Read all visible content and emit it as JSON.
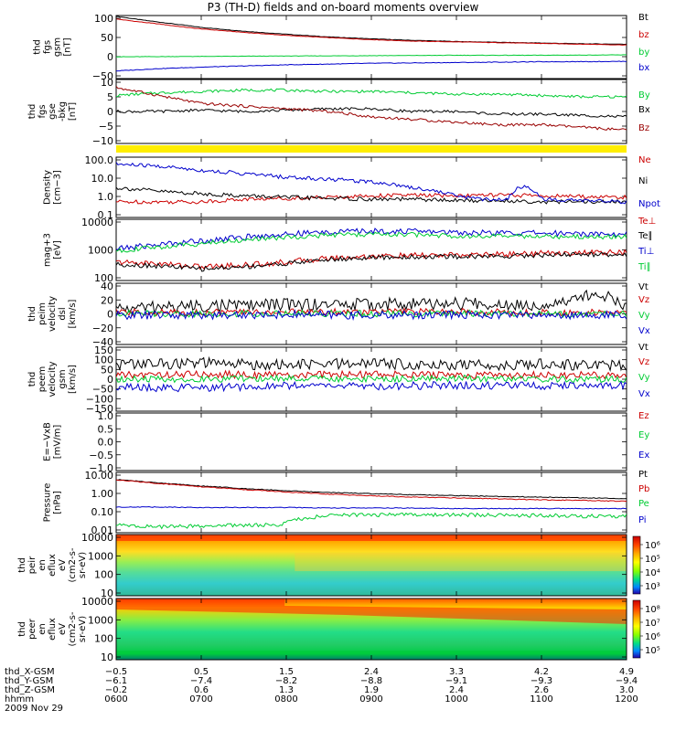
{
  "title": "P3 (TH-D) fields and on-board moments overview",
  "colors": {
    "black": "#000000",
    "red": "#cc0000",
    "green": "#00cc33",
    "blue": "#0000cc",
    "darkred": "#990000",
    "yellow": "#ffee00"
  },
  "chart_data": [
    {
      "type": "line",
      "panel": "fgs_gsm",
      "ylabel": [
        "thd",
        "fgs",
        "gsm",
        "[nT]"
      ],
      "yticks": [
        "100",
        "50",
        "0",
        "−50"
      ],
      "ylim": [
        -60,
        105
      ],
      "series": [
        {
          "name": "Bt",
          "color": "#000000",
          "x": [
            6.0,
            6.25,
            6.5,
            6.75,
            7.0,
            7.5,
            8.0,
            8.5,
            9.0,
            9.5,
            10.0,
            10.5,
            11.0,
            11.5,
            12.0
          ],
          "y": [
            103,
            95,
            88,
            81,
            74,
            64,
            56,
            49,
            44,
            40,
            37,
            35,
            33,
            31,
            30
          ]
        },
        {
          "name": "bz",
          "color": "#cc0000",
          "x": [
            6.0,
            6.25,
            6.5,
            6.75,
            7.0,
            7.5,
            8.0,
            8.5,
            9.0,
            9.5,
            10.0,
            10.5,
            11.0,
            11.5,
            12.0
          ],
          "y": [
            96,
            89,
            83,
            76,
            70,
            61,
            53,
            47,
            42,
            38,
            36,
            34,
            32,
            30,
            28
          ]
        },
        {
          "name": "by",
          "color": "#00cc33",
          "x": [
            6.0,
            7.0,
            8.0,
            9.0,
            10.0,
            11.0,
            12.0
          ],
          "y": [
            -3,
            -2,
            -1,
            0,
            1,
            1,
            2
          ]
        },
        {
          "name": "bx",
          "color": "#0000cc",
          "x": [
            6.0,
            6.5,
            7.0,
            7.5,
            8.0,
            8.5,
            9.0,
            10.0,
            11.0,
            12.0
          ],
          "y": [
            -40,
            -34,
            -30,
            -27,
            -24,
            -22,
            -20,
            -18,
            -16,
            -15
          ]
        }
      ]
    },
    {
      "type": "line",
      "panel": "fgs_dsl",
      "ylabel": [
        "thd",
        "fgs",
        "gse",
        "-bkg",
        "[nT]"
      ],
      "yticks": [
        "10",
        "5",
        "0",
        "−5",
        "−10"
      ],
      "ylim": [
        -13,
        11
      ],
      "series": [
        {
          "name": "By",
          "color": "#00cc33",
          "x": [
            6.0,
            6.5,
            7.0,
            7.5,
            8.0,
            8.5,
            9.0,
            9.5,
            10.0,
            10.5,
            11.0,
            11.5,
            12.0
          ],
          "y": [
            5,
            6,
            6.5,
            7,
            7,
            6.5,
            6.5,
            6,
            5.5,
            5.5,
            5,
            4.5,
            4.5
          ]
        },
        {
          "name": "Bx",
          "color": "#000000",
          "x": [
            6.0,
            6.5,
            7.0,
            7.5,
            8.0,
            8.5,
            9.0,
            9.5,
            10.0,
            10.5,
            11.0,
            11.5,
            12.0
          ],
          "y": [
            -1,
            -1,
            -0.5,
            -1,
            -0.5,
            0,
            0,
            -1,
            -1,
            -2,
            -2,
            -2.5,
            -3
          ]
        },
        {
          "name": "Bz",
          "color": "#990000",
          "x": [
            6.0,
            6.5,
            7.0,
            7.5,
            8.0,
            8.5,
            9.0,
            9.5,
            10.0,
            10.5,
            11.0,
            11.5,
            12.0
          ],
          "y": [
            8,
            5,
            2,
            1,
            0,
            -1,
            -3,
            -4,
            -5,
            -6,
            -6,
            -7,
            -8
          ]
        }
      ]
    },
    {
      "type": "line",
      "panel": "density",
      "yscale": "log",
      "ylabel": [
        "Density",
        "[cm−3]"
      ],
      "yticks": [
        "100.0",
        "10.0",
        "1.0",
        "0.1"
      ],
      "ylim": [
        0.1,
        100
      ],
      "series": [
        {
          "name": "Ne",
          "color": "#cc0000",
          "x": [
            6.0,
            6.5,
            7.0,
            7.5,
            8.0,
            8.5,
            9.0,
            9.5,
            10.0,
            10.5,
            11.0,
            11.5,
            12.0
          ],
          "y": [
            0.6,
            0.6,
            0.6,
            0.8,
            0.9,
            1.0,
            1.2,
            1.3,
            1.2,
            1.3,
            1.2,
            1.1,
            1.0
          ]
        },
        {
          "name": "Ni",
          "color": "#000000",
          "x": [
            6.0,
            6.5,
            7.0,
            7.5,
            8.0,
            8.5,
            9.0,
            9.5,
            10.0,
            10.5,
            11.0,
            11.5,
            12.0
          ],
          "y": [
            3.0,
            2.0,
            1.5,
            1.2,
            1.0,
            0.9,
            0.8,
            0.8,
            0.7,
            0.7,
            0.6,
            0.6,
            0.6
          ]
        },
        {
          "name": "Npot",
          "color": "#0000cc",
          "x": [
            6.0,
            6.5,
            7.0,
            7.5,
            8.0,
            8.5,
            9.0,
            9.5,
            10.0,
            10.3,
            10.6,
            10.8,
            11.0,
            11.5,
            12.0
          ],
          "y": [
            45,
            35,
            22,
            15,
            10,
            8,
            6,
            3,
            1.2,
            0.8,
            0.8,
            4,
            0.8,
            0.7,
            0.6
          ]
        }
      ]
    },
    {
      "type": "line",
      "panel": "temperature",
      "yscale": "log",
      "ylabel": [
        "mag+3",
        "[eV]"
      ],
      "yticks": [
        "10000",
        "1000",
        "100"
      ],
      "ylim": [
        30,
        10000
      ],
      "series": [
        {
          "name": "Te⊥",
          "color": "#cc0000",
          "x": [
            6.0,
            6.5,
            7.0,
            7.5,
            8.0,
            8.5,
            9.0,
            9.5,
            10.0,
            10.5,
            11.0,
            11.5,
            12.0
          ],
          "y": [
            170,
            150,
            110,
            130,
            170,
            250,
            300,
            320,
            330,
            360,
            400,
            420,
            430
          ]
        },
        {
          "name": "Te∥",
          "color": "#000000",
          "x": [
            6.0,
            6.5,
            7.0,
            7.5,
            8.0,
            8.5,
            9.0,
            9.5,
            10.0,
            10.5,
            11.0,
            11.5,
            12.0
          ],
          "y": [
            140,
            120,
            90,
            110,
            150,
            220,
            260,
            280,
            290,
            300,
            340,
            360,
            360
          ]
        },
        {
          "name": "Ti⊥",
          "color": "#0000cc",
          "x": [
            6.0,
            6.5,
            7.0,
            7.5,
            8.0,
            8.5,
            9.0,
            9.5,
            10.0,
            10.5,
            11.0,
            11.5,
            12.0
          ],
          "y": [
            600,
            900,
            1300,
            1800,
            2400,
            3000,
            3300,
            3200,
            2900,
            2700,
            2700,
            2600,
            2500
          ]
        },
        {
          "name": "Ti∥",
          "color": "#00cc33",
          "x": [
            6.0,
            6.5,
            7.0,
            7.5,
            8.0,
            8.5,
            9.0,
            9.5,
            10.0,
            10.5,
            11.0,
            11.5,
            12.0
          ],
          "y": [
            500,
            700,
            1000,
            1400,
            1800,
            2200,
            2400,
            2300,
            2100,
            2000,
            2000,
            1900,
            1900
          ]
        }
      ]
    },
    {
      "type": "line",
      "panel": "velocity_dsl",
      "ylabel": [
        "thd",
        "peim",
        "velocity",
        "dsl",
        "[km/s]"
      ],
      "yticks": [
        "40",
        "20",
        "0",
        "−20",
        "−40"
      ],
      "ylim": [
        -45,
        45
      ],
      "series": [
        {
          "name": "Vt",
          "color": "#000000",
          "x": [
            6.0,
            7.0,
            8.0,
            9.0,
            10.0,
            11.0,
            11.7,
            12.0
          ],
          "y": [
            8,
            12,
            14,
            14,
            15,
            14,
            30,
            12
          ]
        },
        {
          "name": "Vz",
          "color": "#cc0000",
          "x": [
            6.0,
            7.0,
            8.0,
            9.0,
            10.0,
            11.0,
            12.0
          ],
          "y": [
            2,
            2,
            3,
            3,
            3,
            2,
            2
          ]
        },
        {
          "name": "Vy",
          "color": "#00cc33",
          "x": [
            6.0,
            7.0,
            8.0,
            9.0,
            10.0,
            11.0,
            12.0
          ],
          "y": [
            1,
            0,
            1,
            0,
            1,
            0,
            0
          ]
        },
        {
          "name": "Vx",
          "color": "#0000cc",
          "x": [
            6.0,
            7.0,
            8.0,
            9.0,
            10.0,
            11.0,
            12.0
          ],
          "y": [
            -2,
            -2,
            -1,
            -2,
            -1,
            -2,
            -2
          ]
        }
      ]
    },
    {
      "type": "line",
      "panel": "velocity_gsm",
      "ylabel": [
        "thd",
        "peem",
        "velocity",
        "gsm",
        "[km/s]"
      ],
      "yticks": [
        "150",
        "100",
        "50",
        "0",
        "−50",
        "−100",
        "−150"
      ],
      "ylim": [
        -160,
        160
      ],
      "series": [
        {
          "name": "Vt",
          "color": "#000000",
          "x": [
            6.0,
            7.0,
            8.0,
            9.0,
            10.0,
            11.0,
            12.0
          ],
          "y": [
            75,
            80,
            70,
            80,
            70,
            75,
            70
          ]
        },
        {
          "name": "Vz",
          "color": "#cc0000",
          "x": [
            6.0,
            7.0,
            8.0,
            9.0,
            10.0,
            11.0,
            12.0
          ],
          "y": [
            20,
            25,
            20,
            25,
            20,
            20,
            20
          ]
        },
        {
          "name": "Vy",
          "color": "#00cc33",
          "x": [
            6.0,
            7.0,
            8.0,
            9.0,
            10.0,
            11.0,
            12.0
          ],
          "y": [
            0,
            0,
            5,
            0,
            5,
            0,
            0
          ]
        },
        {
          "name": "Vx",
          "color": "#0000cc",
          "x": [
            6.0,
            7.0,
            8.0,
            9.0,
            10.0,
            11.0,
            12.0
          ],
          "y": [
            -40,
            -45,
            -30,
            -35,
            -30,
            -35,
            -30
          ]
        }
      ]
    },
    {
      "type": "line",
      "panel": "efield",
      "ylabel": [
        "E=−VxB",
        "[mV/m]"
      ],
      "yticks": [
        "1.0",
        "0.5",
        "0.0",
        "−0.5",
        "−1.0"
      ],
      "ylim": [
        -1,
        1
      ],
      "series": [
        {
          "name": "Ez",
          "color": "#cc0000",
          "x": [],
          "y": []
        },
        {
          "name": "Ey",
          "color": "#00cc33",
          "x": [],
          "y": []
        },
        {
          "name": "Ex",
          "color": "#0000cc",
          "x": [],
          "y": []
        }
      ]
    },
    {
      "type": "line",
      "panel": "pressure",
      "yscale": "log",
      "ylabel": [
        "Pressure",
        "[nPa]"
      ],
      "yticks": [
        "10.00",
        "1.00",
        "0.10",
        "0.01"
      ],
      "ylim": [
        0.008,
        12
      ],
      "series": [
        {
          "name": "Pt",
          "color": "#000000",
          "x": [
            6.0,
            6.5,
            7.0,
            7.5,
            8.0,
            8.5,
            9.0,
            9.5,
            10.0,
            10.5,
            11.0,
            11.5,
            12.0
          ],
          "y": [
            5.0,
            3.3,
            2.3,
            1.7,
            1.3,
            1.05,
            0.9,
            0.8,
            0.72,
            0.65,
            0.6,
            0.55,
            0.5
          ]
        },
        {
          "name": "Pb",
          "color": "#cc0000",
          "x": [
            6.0,
            6.5,
            7.0,
            7.5,
            8.0,
            8.5,
            9.0,
            9.5,
            10.0,
            10.5,
            11.0,
            11.5,
            12.0
          ],
          "y": [
            4.8,
            3.1,
            2.1,
            1.5,
            1.1,
            0.85,
            0.7,
            0.6,
            0.55,
            0.48,
            0.43,
            0.4,
            0.36
          ]
        },
        {
          "name": "Pe",
          "color": "#00cc33",
          "x": [
            6.0,
            6.5,
            7.0,
            7.5,
            7.9,
            8.2,
            8.5,
            9.0,
            9.5,
            10.0,
            10.5,
            11.0,
            11.5,
            12.0
          ],
          "y": [
            0.02,
            0.016,
            0.018,
            0.02,
            0.02,
            0.045,
            0.065,
            0.07,
            0.07,
            0.07,
            0.065,
            0.065,
            0.06,
            0.06
          ]
        },
        {
          "name": "Pi",
          "color": "#0000cc",
          "x": [
            6.0,
            6.5,
            7.0,
            7.5,
            8.0,
            8.5,
            9.0,
            9.5,
            10.0,
            10.5,
            11.0,
            11.5,
            12.0
          ],
          "y": [
            0.18,
            0.18,
            0.17,
            0.17,
            0.17,
            0.16,
            0.16,
            0.16,
            0.15,
            0.15,
            0.15,
            0.15,
            0.15
          ]
        }
      ]
    },
    {
      "type": "heatmap",
      "panel": "ion_spectrogram",
      "yscale": "log",
      "ylabel": [
        "thd",
        "peir",
        "en",
        "eflux",
        "eV",
        "(cm2-s-",
        "sr-eV)"
      ],
      "yticks": [
        "10000",
        "1000",
        "100",
        "10"
      ],
      "ylim": [
        7,
        25000
      ],
      "colorbar_ticks": [
        "10⁶",
        "10⁵",
        "10⁴",
        "10³"
      ]
    },
    {
      "type": "heatmap",
      "panel": "electron_spectrogram",
      "yscale": "log",
      "ylabel": [
        "thd",
        "peer",
        "en",
        "eflux",
        "eV",
        "(cm2-s-",
        "sr-eV)"
      ],
      "yticks": [
        "10000",
        "1000",
        "100",
        "10"
      ],
      "ylim": [
        7,
        25000
      ],
      "colorbar_ticks": [
        "10⁸",
        "10⁷",
        "10⁶",
        "10⁵"
      ]
    }
  ],
  "time_axis": {
    "xlim": [
      6.0,
      12.0
    ],
    "ticks": [
      6.0,
      7.0,
      8.0,
      9.0,
      10.0,
      11.0,
      12.0
    ],
    "rows": [
      {
        "label": "thd_X-GSM",
        "values": [
          "−0.5",
          "0.5",
          "1.5",
          "2.4",
          "3.3",
          "4.2",
          "4.9"
        ]
      },
      {
        "label": "thd_Y-GSM",
        "values": [
          "−6.1",
          "−7.4",
          "−8.2",
          "−8.8",
          "−9.1",
          "−9.3",
          "−9.4"
        ]
      },
      {
        "label": "thd_Z-GSM",
        "values": [
          "−0.2",
          "0.6",
          "1.3",
          "1.9",
          "2.4",
          "2.6",
          "3.0"
        ]
      },
      {
        "label": "hhmm",
        "values": [
          "0600",
          "0700",
          "0800",
          "0900",
          "1000",
          "1100",
          "1200"
        ]
      }
    ],
    "date": "2009 Nov 29"
  }
}
